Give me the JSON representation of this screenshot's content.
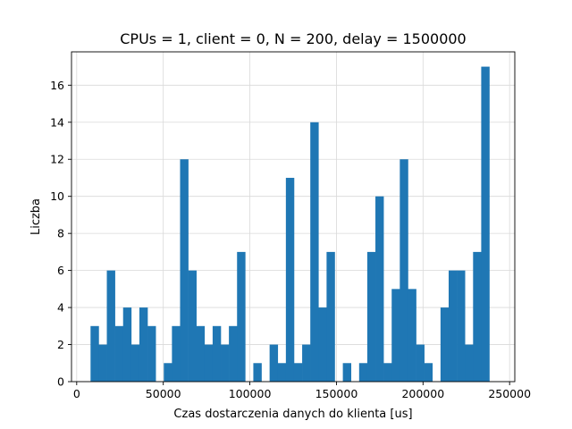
{
  "chart_data": {
    "type": "bar",
    "title": "CPUs = 1, client = 0, N = 200, delay = 1500000",
    "xlabel": "Czas dostarczenia danych do klienta [us]",
    "ylabel": "Liczba",
    "xlim": [
      -3000,
      253000
    ],
    "ylim": [
      0,
      17.8
    ],
    "xticks": [
      0,
      50000,
      100000,
      150000,
      200000,
      250000
    ],
    "xtick_labels": [
      "0",
      "50000",
      "100000",
      "150000",
      "200000",
      "250000"
    ],
    "yticks": [
      0,
      2,
      4,
      6,
      8,
      10,
      12,
      14,
      16
    ],
    "ytick_labels": [
      "0",
      "2",
      "4",
      "6",
      "8",
      "10",
      "12",
      "14",
      "16"
    ],
    "grid": true,
    "color": "#1f77b4",
    "bin_start": 8000,
    "bin_width": 4700,
    "values": [
      3,
      2,
      6,
      3,
      4,
      2,
      4,
      3,
      0,
      1,
      3,
      12,
      6,
      3,
      2,
      3,
      2,
      3,
      7,
      0,
      1,
      0,
      2,
      1,
      11,
      1,
      2,
      14,
      4,
      7,
      0,
      1,
      0,
      1,
      7,
      10,
      1,
      5,
      12,
      5,
      2,
      1,
      0,
      4,
      6,
      6,
      2,
      7,
      17
    ]
  }
}
